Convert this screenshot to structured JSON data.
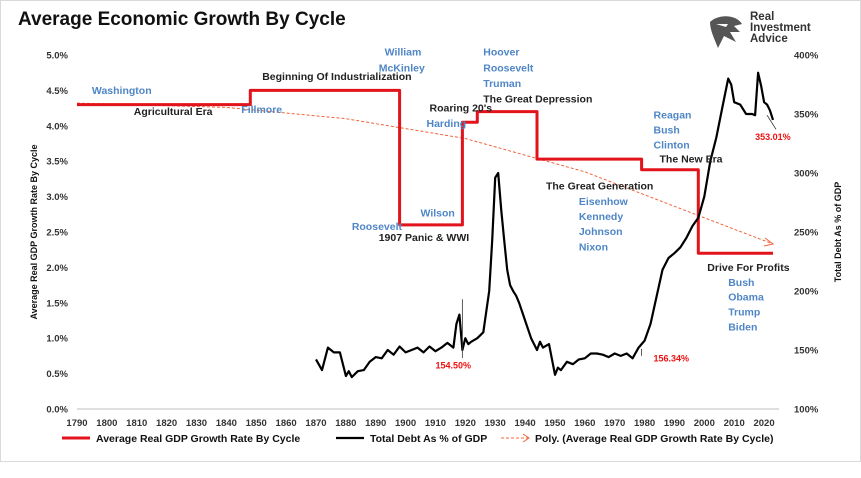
{
  "title": "Average Economic Growth By Cycle",
  "logo": {
    "line1": "Real",
    "line2": "Investment",
    "line3": "Advice",
    "icon": "eagle-head-icon"
  },
  "colors": {
    "gdp": "#e3131b",
    "debt": "#000000",
    "trend": "#f0643c",
    "label_blue": "#4f86c6"
  },
  "chart_data": {
    "type": "line",
    "title": "Average Economic Growth By Cycle",
    "xlabel": "",
    "ylabel": "Average Real GDP Growth Rate By Cycle",
    "y2label": "Total Debt As % of GDP",
    "xlim": [
      1790,
      2025
    ],
    "ylim": [
      0,
      5.0
    ],
    "y2lim": [
      100,
      400
    ],
    "x_ticks": [
      "1790",
      "1800",
      "1810",
      "1820",
      "1830",
      "1840",
      "1850",
      "1860",
      "1870",
      "1880",
      "1890",
      "1900",
      "1910",
      "1920",
      "1930",
      "1940",
      "1950",
      "1960",
      "1970",
      "1980",
      "1990",
      "2000",
      "2010",
      "2020"
    ],
    "y_ticks": [
      "0.0%",
      "0.5%",
      "1.0%",
      "1.5%",
      "2.0%",
      "2.5%",
      "3.0%",
      "3.5%",
      "4.0%",
      "4.5%",
      "5.0%"
    ],
    "y2_ticks": [
      "100%",
      "150%",
      "200%",
      "250%",
      "300%",
      "350%",
      "400%"
    ],
    "grid": false,
    "legend_position": "bottom",
    "series": [
      {
        "name": "Average Real GDP Growth Rate By Cycle",
        "axis": "left",
        "style": "step",
        "x": [
          1790,
          1848,
          1848,
          1898,
          1898,
          1919,
          1919,
          1924,
          1924,
          1944,
          1944,
          1979,
          1979,
          1998,
          1998,
          2023
        ],
        "y": [
          4.3,
          4.3,
          4.5,
          4.5,
          2.6,
          2.6,
          4.05,
          4.05,
          4.2,
          4.2,
          3.53,
          3.53,
          3.38,
          3.38,
          2.2,
          2.2
        ]
      },
      {
        "name": "Total Debt As % of GDP",
        "axis": "right",
        "style": "line",
        "x": [
          1870,
          1872,
          1874,
          1876,
          1878,
          1880,
          1881,
          1882,
          1884,
          1886,
          1888,
          1890,
          1892,
          1894,
          1896,
          1898,
          1900,
          1902,
          1904,
          1906,
          1908,
          1910,
          1912,
          1914,
          1916,
          1917,
          1918,
          1919,
          1920,
          1921,
          1922,
          1924,
          1926,
          1928,
          1929,
          1930,
          1931,
          1932,
          1933,
          1934,
          1935,
          1936,
          1937,
          1938,
          1940,
          1942,
          1944,
          1945,
          1946,
          1948,
          1950,
          1951,
          1952,
          1954,
          1956,
          1958,
          1960,
          1962,
          1964,
          1966,
          1968,
          1970,
          1972,
          1974,
          1976,
          1978,
          1980,
          1982,
          1984,
          1986,
          1988,
          1990,
          1992,
          1994,
          1996,
          1998,
          2000,
          2002,
          2004,
          2006,
          2008,
          2009,
          2010,
          2012,
          2014,
          2016,
          2017,
          2018,
          2019,
          2020,
          2021,
          2022,
          2023
        ],
        "y": [
          142,
          133,
          152,
          148,
          148,
          128,
          132,
          127,
          132,
          133,
          140,
          144,
          143,
          150,
          146,
          153,
          148,
          150,
          152,
          148,
          153,
          149,
          152,
          156,
          152,
          172,
          180,
          150,
          160,
          155,
          157,
          160,
          165,
          200,
          243,
          296,
          300,
          269,
          243,
          218,
          205,
          200,
          196,
          190,
          175,
          160,
          150,
          157,
          152,
          155,
          129,
          135,
          133,
          140,
          138,
          142,
          143,
          147,
          147,
          146,
          144,
          147,
          145,
          147,
          143,
          152,
          158,
          172,
          195,
          218,
          228,
          232,
          237,
          245,
          255,
          262,
          280,
          310,
          330,
          355,
          380,
          375,
          360,
          358,
          350,
          350,
          349,
          385,
          374,
          360,
          358,
          353,
          345
        ]
      },
      {
        "name": "Poly. (Average Real GDP Growth Rate By Cycle)",
        "axis": "left",
        "style": "dashed",
        "x": [
          1790,
          1840,
          1880,
          1920,
          1960,
          2000,
          2023
        ],
        "y": [
          4.32,
          4.26,
          4.1,
          3.82,
          3.35,
          2.7,
          2.33
        ]
      }
    ],
    "annotations": [
      {
        "text": "Washington",
        "x": 1795,
        "y": 4.45,
        "color": "blue"
      },
      {
        "text": "Agricultural Era",
        "x": 1809,
        "y": 4.15,
        "color": "dark"
      },
      {
        "text": "Fillmore",
        "x": 1845,
        "y": 4.18,
        "color": "blue"
      },
      {
        "text": "Beginning Of Industrialization",
        "x": 1852,
        "y": 4.65,
        "color": "dark"
      },
      {
        "text": "William",
        "x": 1893,
        "y": 4.99,
        "color": "blue"
      },
      {
        "text": "McKinley",
        "x": 1891,
        "y": 4.77,
        "color": "blue"
      },
      {
        "text": "Roosevelt",
        "x": 1882,
        "y": 2.53,
        "color": "blue"
      },
      {
        "text": "1907 Panic & WWI",
        "x": 1891,
        "y": 2.37,
        "color": "dark"
      },
      {
        "text": "Wilson",
        "x": 1905,
        "y": 2.72,
        "color": "blue"
      },
      {
        "text": "Roaring 20's",
        "x": 1908,
        "y": 4.2,
        "color": "dark"
      },
      {
        "text": "Harding",
        "x": 1907,
        "y": 3.98,
        "color": "blue"
      },
      {
        "text": "Hoover",
        "x": 1926,
        "y": 4.99,
        "color": "blue"
      },
      {
        "text": "Roosevelt",
        "x": 1926,
        "y": 4.77,
        "color": "blue"
      },
      {
        "text": "Truman",
        "x": 1926,
        "y": 4.55,
        "color": "blue"
      },
      {
        "text": "The Great Depression",
        "x": 1926,
        "y": 4.33,
        "color": "dark"
      },
      {
        "text": "The Great Generation",
        "x": 1947,
        "y": 3.1,
        "color": "dark"
      },
      {
        "text": "Eisenhow",
        "x": 1958,
        "y": 2.88,
        "color": "blue"
      },
      {
        "text": "Kennedy",
        "x": 1958,
        "y": 2.67,
        "color": "blue"
      },
      {
        "text": "Johnson",
        "x": 1958,
        "y": 2.46,
        "color": "blue"
      },
      {
        "text": "Nixon",
        "x": 1958,
        "y": 2.24,
        "color": "blue"
      },
      {
        "text": "Reagan",
        "x": 1983,
        "y": 4.1,
        "color": "blue"
      },
      {
        "text": "Bush",
        "x": 1983,
        "y": 3.89,
        "color": "blue"
      },
      {
        "text": "Clinton",
        "x": 1983,
        "y": 3.68,
        "color": "blue"
      },
      {
        "text": "The New Era",
        "x": 1985,
        "y": 3.48,
        "color": "dark"
      },
      {
        "text": "Drive For Profits",
        "x": 2001,
        "y": 1.95,
        "color": "dark"
      },
      {
        "text": "Bush",
        "x": 2008,
        "y": 1.74,
        "color": "blue"
      },
      {
        "text": "Obama",
        "x": 2008,
        "y": 1.53,
        "color": "blue"
      },
      {
        "text": "Trump",
        "x": 2008,
        "y": 1.32,
        "color": "blue"
      },
      {
        "text": "Biden",
        "x": 2008,
        "y": 1.11,
        "color": "blue"
      },
      {
        "text": "154.50%",
        "x": 1910,
        "y": 0.57,
        "color": "red"
      },
      {
        "text": "156.34%",
        "x": 1983,
        "y": 0.67,
        "color": "red"
      },
      {
        "text": "353.01%",
        "x": 2017,
        "y": 3.8,
        "color": "red"
      }
    ]
  }
}
